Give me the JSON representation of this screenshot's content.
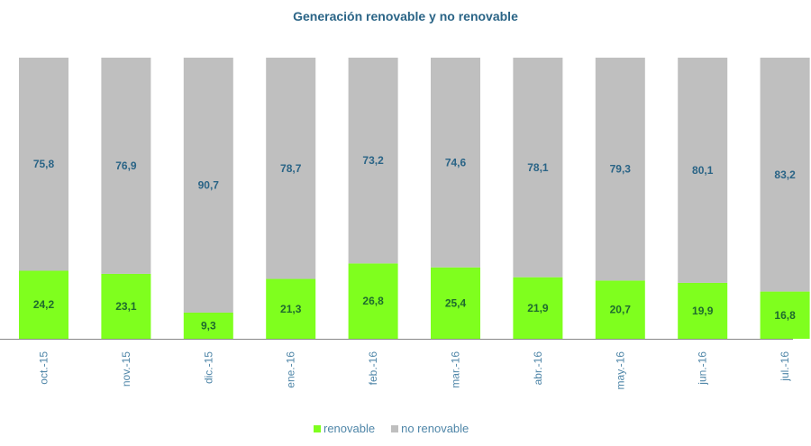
{
  "chart_data": {
    "type": "bar",
    "stacked": true,
    "title": "Generación renovable y no renovable",
    "xlabel": "",
    "ylabel": "",
    "ylim": [
      0,
      100
    ],
    "grid": false,
    "legend_position": "bottom",
    "categories": [
      "oct.-15",
      "nov.-15",
      "dic.-15",
      "ene.-16",
      "feb.-16",
      "mar.-16",
      "abr.-16",
      "may.-16",
      "jun.-16",
      "jul.-16"
    ],
    "series": [
      {
        "name": "renovable",
        "color": "#7fff1e",
        "label_color": "#1e6b2e",
        "values": [
          24.2,
          23.1,
          9.3,
          21.3,
          26.8,
          25.4,
          21.9,
          20.7,
          19.9,
          16.8
        ],
        "labels": [
          "24,2",
          "23,1",
          "9,3",
          "21,3",
          "26,8",
          "25,4",
          "21,9",
          "20,7",
          "19,9",
          "16,8"
        ]
      },
      {
        "name": "no renovable",
        "color": "#bfbfbf",
        "label_color": "#2a6486",
        "values": [
          75.8,
          76.9,
          90.7,
          78.7,
          73.2,
          74.6,
          78.1,
          79.3,
          80.1,
          83.2
        ],
        "labels": [
          "75,8",
          "76,9",
          "90,7",
          "78,7",
          "73,2",
          "74,6",
          "78,1",
          "79,3",
          "80,1",
          "83,2"
        ]
      }
    ]
  }
}
